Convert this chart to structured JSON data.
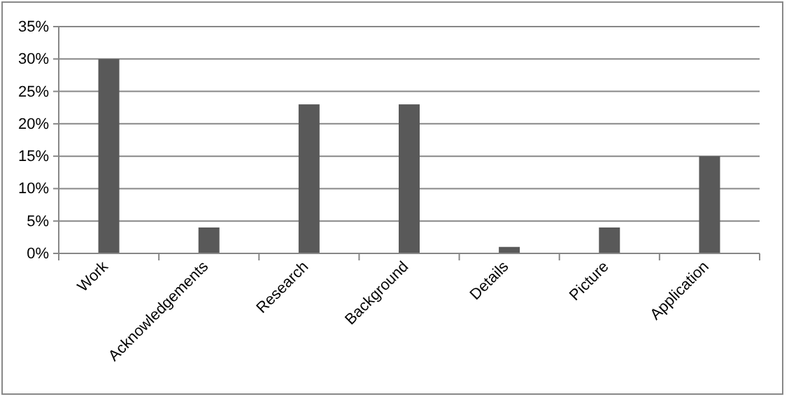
{
  "chart_data": {
    "type": "bar",
    "categories": [
      "Work",
      "Acknowledgements",
      "Research",
      "Background",
      "Details",
      "Picture",
      "Application"
    ],
    "values": [
      30,
      4,
      23,
      23,
      1,
      4,
      15
    ],
    "color": "#595959",
    "ylim": [
      0,
      35
    ],
    "yticks": [
      {
        "value": 0,
        "label": "0%"
      },
      {
        "value": 5,
        "label": "5%"
      },
      {
        "value": 10,
        "label": "10%"
      },
      {
        "value": 15,
        "label": "15%"
      },
      {
        "value": 20,
        "label": "20%"
      },
      {
        "value": 25,
        "label": "25%"
      },
      {
        "value": 30,
        "label": "30%"
      },
      {
        "value": 35,
        "label": "35%"
      }
    ],
    "grid": "y"
  }
}
